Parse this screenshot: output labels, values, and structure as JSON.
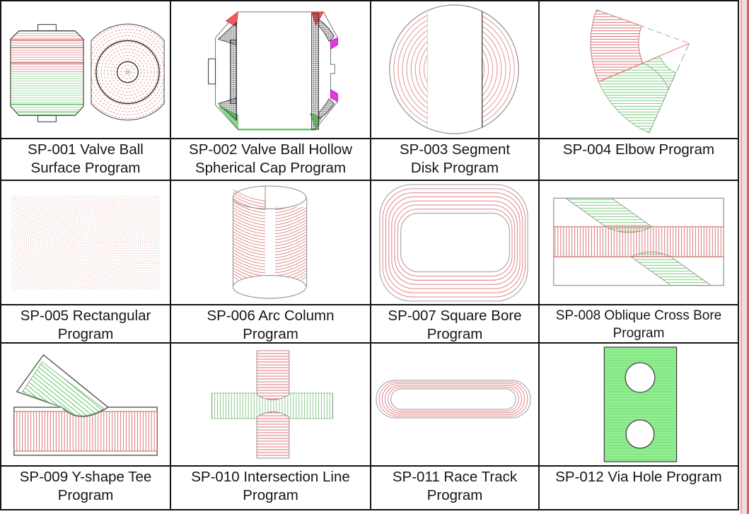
{
  "grid": {
    "cells": [
      {
        "id": "SP-001",
        "line1": "SP-001 Valve Ball",
        "line2": "Surface Program",
        "drawing": "valve-ball-surface-drawing"
      },
      {
        "id": "SP-002",
        "line1": "SP-002 Valve Ball Hollow",
        "line2": "Spherical Cap Program",
        "drawing": "valve-ball-hollow-spherical-cap-drawing"
      },
      {
        "id": "SP-003",
        "line1": "SP-003 Segment",
        "line2": "Disk Program",
        "drawing": "segment-disk-drawing"
      },
      {
        "id": "SP-004",
        "line1": "SP-004 Elbow Program",
        "line2": "",
        "drawing": "elbow-drawing"
      },
      {
        "id": "SP-005",
        "line1": "SP-005 Rectangular",
        "line2": "Program",
        "drawing": "rectangular-drawing"
      },
      {
        "id": "SP-006",
        "line1": "SP-006 Arc Column",
        "line2": "Program",
        "drawing": "arc-column-drawing"
      },
      {
        "id": "SP-007",
        "line1": "SP-007 Square Bore",
        "line2": "Program",
        "drawing": "square-bore-drawing"
      },
      {
        "id": "SP-008",
        "line1": "SP-008 Oblique Cross Bore",
        "line2": "Program",
        "drawing": "oblique-cross-bore-drawing"
      },
      {
        "id": "SP-009",
        "line1": "SP-009 Y-shape Tee",
        "line2": "Program",
        "drawing": "y-shape-tee-drawing"
      },
      {
        "id": "SP-010",
        "line1": "SP-010 Intersection Line",
        "line2": "Program",
        "drawing": "intersection-line-drawing"
      },
      {
        "id": "SP-011",
        "line1": "SP-011 Race Track",
        "line2": "Program",
        "drawing": "race-track-drawing"
      },
      {
        "id": "SP-012",
        "line1": "SP-012 Via Hole Program",
        "line2": "",
        "drawing": "via-hole-drawing"
      }
    ]
  },
  "colors": {
    "grid_line": "#141414",
    "red_hatch": "#e07070",
    "green_hatch": "#7ccc7c",
    "magenta_accent": "#ee00ee",
    "edge_strip": "#f3dcdc"
  }
}
